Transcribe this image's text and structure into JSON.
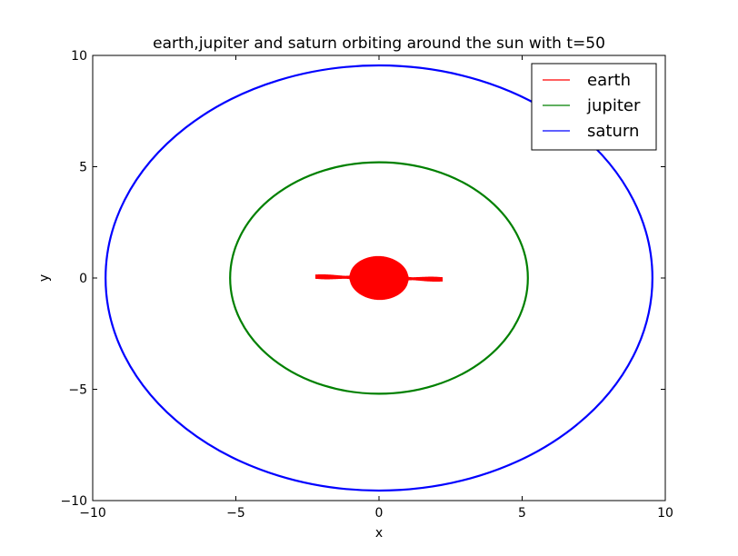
{
  "chart_data": {
    "type": "line",
    "title": "earth,jupiter and saturn orbiting around the sun with t=50",
    "xlabel": "x",
    "ylabel": "y",
    "xlim": [
      -10,
      10
    ],
    "ylim": [
      -10,
      10
    ],
    "xticks": [
      -10,
      -5,
      0,
      5,
      10
    ],
    "yticks": [
      -10,
      -5,
      0,
      5,
      10
    ],
    "xtick_labels": [
      "−10",
      "−5",
      "0",
      "5",
      "10"
    ],
    "ytick_labels": [
      "−10",
      "−5",
      "0",
      "5",
      "10"
    ],
    "grid": false,
    "legend_position": "top-right",
    "series": [
      {
        "name": "earth",
        "color": "#ff0000",
        "orbit": {
          "cx": 0.0,
          "cy": 0.0,
          "a": 1.0,
          "b": 1.0,
          "perturbed_tail_x": 2.2
        }
      },
      {
        "name": "jupiter",
        "color": "#008000",
        "orbit": {
          "cx": 0.0,
          "cy": 0.0,
          "a": 5.2,
          "b": 5.2
        }
      },
      {
        "name": "saturn",
        "color": "#0000ff",
        "orbit": {
          "cx": 0.0,
          "cy": 0.0,
          "a": 9.55,
          "b": 9.55
        }
      }
    ]
  }
}
